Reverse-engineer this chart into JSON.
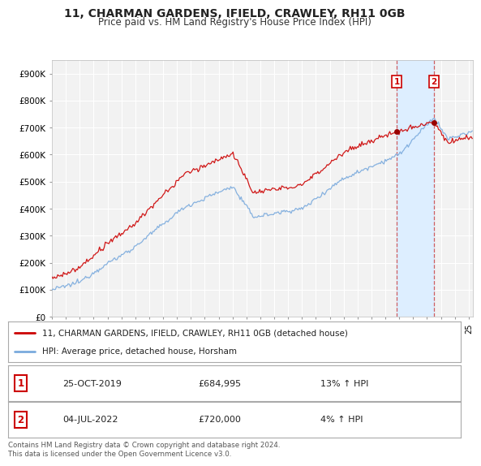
{
  "title": "11, CHARMAN GARDENS, IFIELD, CRAWLEY, RH11 0GB",
  "subtitle": "Price paid vs. HM Land Registry's House Price Index (HPI)",
  "ytick_labels": [
    "£0",
    "£100K",
    "£200K",
    "£300K",
    "£400K",
    "£500K",
    "£600K",
    "£700K",
    "£800K",
    "£900K"
  ],
  "yticks": [
    0,
    100000,
    200000,
    300000,
    400000,
    500000,
    600000,
    700000,
    800000,
    900000
  ],
  "line1_color": "#cc0000",
  "line2_color": "#7aaadd",
  "legend_label1": "11, CHARMAN GARDENS, IFIELD, CRAWLEY, RH11 0GB (detached house)",
  "legend_label2": "HPI: Average price, detached house, Horsham",
  "sale1_date": "25-OCT-2019",
  "sale1_price": 684995,
  "sale1_label": "£684,995",
  "sale1_hpi": "13% ↑ HPI",
  "sale2_date": "04-JUL-2022",
  "sale2_price": 720000,
  "sale2_label": "£720,000",
  "sale2_hpi": "4% ↑ HPI",
  "footer": "Contains HM Land Registry data © Crown copyright and database right 2024.\nThis data is licensed under the Open Government Licence v3.0.",
  "background_color": "#ffffff",
  "plot_bg_color": "#f2f2f2",
  "grid_color": "#ffffff",
  "sale1_marker_x": 2019.82,
  "sale2_marker_x": 2022.51,
  "span_color": "#ddeeff",
  "xlim_start": 1995.0,
  "xlim_end": 2025.3,
  "ylim_top": 950000
}
